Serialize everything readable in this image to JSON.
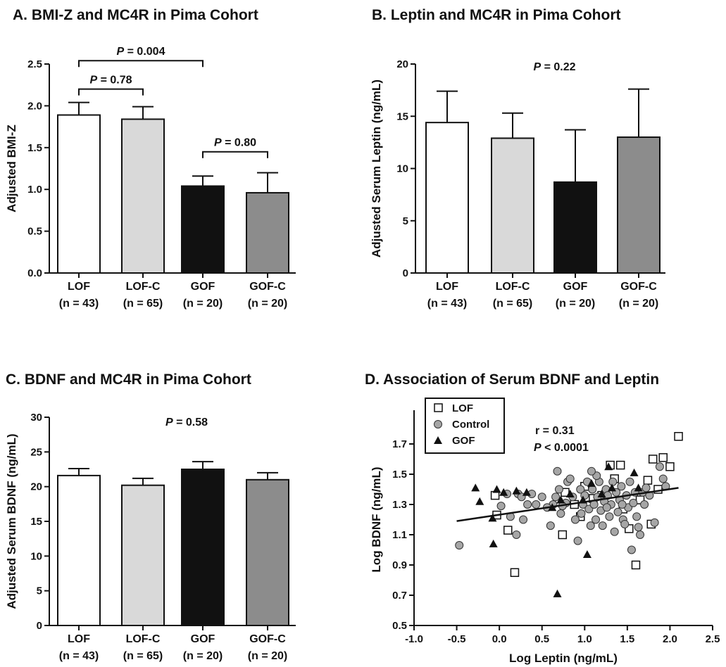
{
  "chart_data": [
    {
      "id": "A",
      "type": "bar",
      "title": "A. BMI-Z and MC4R in Pima Cohort",
      "ylabel": "Adjusted BMI-Z",
      "ylim": [
        0,
        2.5
      ],
      "yticks": [
        "0.0",
        "0.5",
        "1.0",
        "1.5",
        "2.0",
        "2.5"
      ],
      "categories": [
        "LOF",
        "LOF-C",
        "GOF",
        "GOF-C"
      ],
      "category_n": [
        "(n = 43)",
        "(n = 65)",
        "(n = 20)",
        "(n = 20)"
      ],
      "values": [
        1.89,
        1.84,
        1.04,
        0.96
      ],
      "errors": [
        0.15,
        0.15,
        0.12,
        0.24
      ],
      "colors": [
        "#ffffff",
        "#d9d9d9",
        "#111111",
        "#8c8c8c"
      ],
      "annotations": [
        {
          "label": "P",
          "text": " = 0.004",
          "from": 0,
          "to": 2,
          "y": 2.54
        },
        {
          "label": "P",
          "text": " = 0.78",
          "from": 0,
          "to": 1,
          "y": 2.2
        },
        {
          "label": "P",
          "text": " = 0.80",
          "from": 2,
          "to": 3,
          "y": 1.45
        }
      ]
    },
    {
      "id": "B",
      "type": "bar",
      "title": "B. Leptin and MC4R in Pima Cohort",
      "ylabel": "Adjusted Serum Leptin (ng/mL)",
      "ylim": [
        0,
        20
      ],
      "yticks": [
        "0",
        "5",
        "10",
        "15",
        "20"
      ],
      "categories": [
        "LOF",
        "LOF-C",
        "GOF",
        "GOF-C"
      ],
      "category_n": [
        "(n = 43)",
        "(n = 65)",
        "(n = 20)",
        "(n = 20)"
      ],
      "values": [
        14.4,
        12.9,
        8.7,
        13.0
      ],
      "errors": [
        3.0,
        2.4,
        5.0,
        4.6
      ],
      "colors": [
        "#ffffff",
        "#d9d9d9",
        "#111111",
        "#8c8c8c"
      ],
      "annotations": [
        {
          "label": "P",
          "text": " = 0.22"
        }
      ]
    },
    {
      "id": "C",
      "type": "bar",
      "title": "C. BDNF and MC4R in Pima Cohort",
      "ylabel": "Adjusted Serum BDNF (ng/mL)",
      "ylim": [
        0,
        30
      ],
      "yticks": [
        "0",
        "5",
        "10",
        "15",
        "20",
        "25",
        "30"
      ],
      "categories": [
        "LOF",
        "LOF-C",
        "GOF",
        "GOF-C"
      ],
      "category_n": [
        "(n = 43)",
        "(n = 65)",
        "(n = 20)",
        "(n = 20)"
      ],
      "values": [
        21.6,
        20.2,
        22.5,
        21.0
      ],
      "errors": [
        1.0,
        1.0,
        1.1,
        1.0
      ],
      "colors": [
        "#ffffff",
        "#d9d9d9",
        "#111111",
        "#8c8c8c"
      ],
      "annotations": [
        {
          "label": "P",
          "text": " = 0.58"
        }
      ]
    },
    {
      "id": "D",
      "type": "scatter",
      "title": "D.  Association of Serum BDNF and Leptin",
      "xlabel": "Log Leptin (ng/mL)",
      "ylabel": "Log BDNF (ng/mL)",
      "xlim": [
        -1.0,
        2.5
      ],
      "ylim": [
        0.5,
        1.9
      ],
      "xticks": [
        "-1.0",
        "-0.5",
        "0.0",
        "0.5",
        "1.0",
        "1.5",
        "2.0",
        "2.5"
      ],
      "yticks": [
        "0.5",
        "0.7",
        "0.9",
        "1.1",
        "1.3",
        "1.5",
        "1.7"
      ],
      "stats": {
        "r": "r = 0.31",
        "p_label": "P",
        "p_text": " < 0.0001"
      },
      "regression": {
        "x": [
          -0.5,
          2.1
        ],
        "y": [
          1.19,
          1.41
        ]
      },
      "legend": [
        "LOF",
        "Control",
        "GOF"
      ],
      "series": [
        {
          "name": "LOF",
          "marker": "open-square",
          "points": [
            [
              -0.03,
              1.23
            ],
            [
              -0.05,
              1.36
            ],
            [
              0.1,
              1.13
            ],
            [
              0.18,
              0.85
            ],
            [
              0.74,
              1.1
            ],
            [
              0.77,
              1.38
            ],
            [
              1.0,
              1.42
            ],
            [
              1.3,
              1.56
            ],
            [
              1.42,
              1.56
            ],
            [
              1.52,
              1.14
            ],
            [
              1.6,
              0.9
            ],
            [
              1.78,
              1.17
            ],
            [
              1.8,
              1.6
            ],
            [
              1.92,
              1.61
            ],
            [
              2.0,
              1.55
            ],
            [
              2.1,
              1.75
            ],
            [
              1.65,
              1.33
            ],
            [
              1.2,
              1.36
            ],
            [
              0.88,
              1.3
            ],
            [
              1.74,
              1.46
            ],
            [
              1.45,
              1.27
            ],
            [
              0.95,
              1.22
            ],
            [
              1.86,
              1.4
            ],
            [
              1.35,
              1.47
            ],
            [
              1.1,
              1.34
            ]
          ]
        },
        {
          "name": "Control",
          "marker": "gray-circle",
          "points": [
            [
              -0.47,
              1.03
            ],
            [
              0.02,
              1.29
            ],
            [
              0.09,
              1.37
            ],
            [
              0.13,
              1.22
            ],
            [
              0.2,
              1.1
            ],
            [
              0.22,
              1.37
            ],
            [
              0.26,
              1.35
            ],
            [
              0.28,
              1.2
            ],
            [
              0.33,
              1.3
            ],
            [
              0.38,
              1.37
            ],
            [
              0.43,
              1.3
            ],
            [
              0.5,
              1.35
            ],
            [
              0.6,
              1.16
            ],
            [
              0.63,
              1.3
            ],
            [
              0.68,
              1.52
            ],
            [
              0.7,
              1.4
            ],
            [
              0.72,
              1.24
            ],
            [
              0.78,
              1.31
            ],
            [
              0.8,
              1.45
            ],
            [
              0.83,
              1.47
            ],
            [
              0.86,
              1.35
            ],
            [
              0.89,
              1.2
            ],
            [
              0.92,
              1.06
            ],
            [
              0.95,
              1.4
            ],
            [
              0.98,
              1.3
            ],
            [
              1.0,
              1.36
            ],
            [
              1.03,
              1.45
            ],
            [
              1.05,
              1.27
            ],
            [
              1.07,
              1.16
            ],
            [
              1.09,
              1.4
            ],
            [
              1.11,
              1.3
            ],
            [
              1.13,
              1.2
            ],
            [
              1.15,
              1.35
            ],
            [
              1.17,
              1.45
            ],
            [
              1.19,
              1.26
            ],
            [
              1.21,
              1.16
            ],
            [
              1.23,
              1.32
            ],
            [
              1.25,
              1.4
            ],
            [
              1.27,
              1.36
            ],
            [
              1.29,
              1.22
            ],
            [
              1.31,
              1.3
            ],
            [
              1.33,
              1.45
            ],
            [
              1.35,
              1.12
            ],
            [
              1.37,
              1.38
            ],
            [
              1.39,
              1.25
            ],
            [
              1.41,
              1.33
            ],
            [
              1.43,
              1.42
            ],
            [
              1.45,
              1.2
            ],
            [
              1.47,
              1.17
            ],
            [
              1.49,
              1.36
            ],
            [
              1.51,
              1.28
            ],
            [
              1.53,
              1.45
            ],
            [
              1.55,
              1.0
            ],
            [
              1.57,
              1.31
            ],
            [
              1.59,
              1.38
            ],
            [
              1.61,
              1.22
            ],
            [
              1.63,
              1.15
            ],
            [
              1.65,
              1.1
            ],
            [
              1.68,
              1.38
            ],
            [
              1.7,
              1.3
            ],
            [
              1.72,
              1.41
            ],
            [
              1.76,
              1.36
            ],
            [
              1.82,
              1.18
            ],
            [
              1.88,
              1.55
            ],
            [
              1.92,
              1.47
            ],
            [
              1.95,
              1.42
            ],
            [
              1.14,
              1.49
            ],
            [
              0.96,
              1.24
            ],
            [
              1.08,
              1.52
            ],
            [
              0.74,
              1.29
            ],
            [
              1.26,
              1.28
            ],
            [
              1.44,
              1.3
            ],
            [
              0.56,
              1.28
            ],
            [
              0.66,
              1.35
            ]
          ]
        },
        {
          "name": "GOF",
          "marker": "filled-triangle",
          "points": [
            [
              -0.28,
              1.41
            ],
            [
              -0.23,
              1.32
            ],
            [
              -0.08,
              1.21
            ],
            [
              -0.07,
              1.04
            ],
            [
              -0.03,
              1.4
            ],
            [
              0.05,
              1.38
            ],
            [
              0.2,
              1.39
            ],
            [
              0.32,
              1.38
            ],
            [
              0.62,
              1.28
            ],
            [
              0.68,
              0.71
            ],
            [
              0.72,
              1.33
            ],
            [
              0.83,
              1.37
            ],
            [
              0.98,
              1.33
            ],
            [
              1.03,
              0.97
            ],
            [
              1.08,
              1.44
            ],
            [
              1.2,
              1.37
            ],
            [
              1.28,
              1.55
            ],
            [
              1.32,
              1.41
            ],
            [
              1.58,
              1.51
            ],
            [
              1.63,
              1.41
            ]
          ]
        }
      ]
    }
  ]
}
